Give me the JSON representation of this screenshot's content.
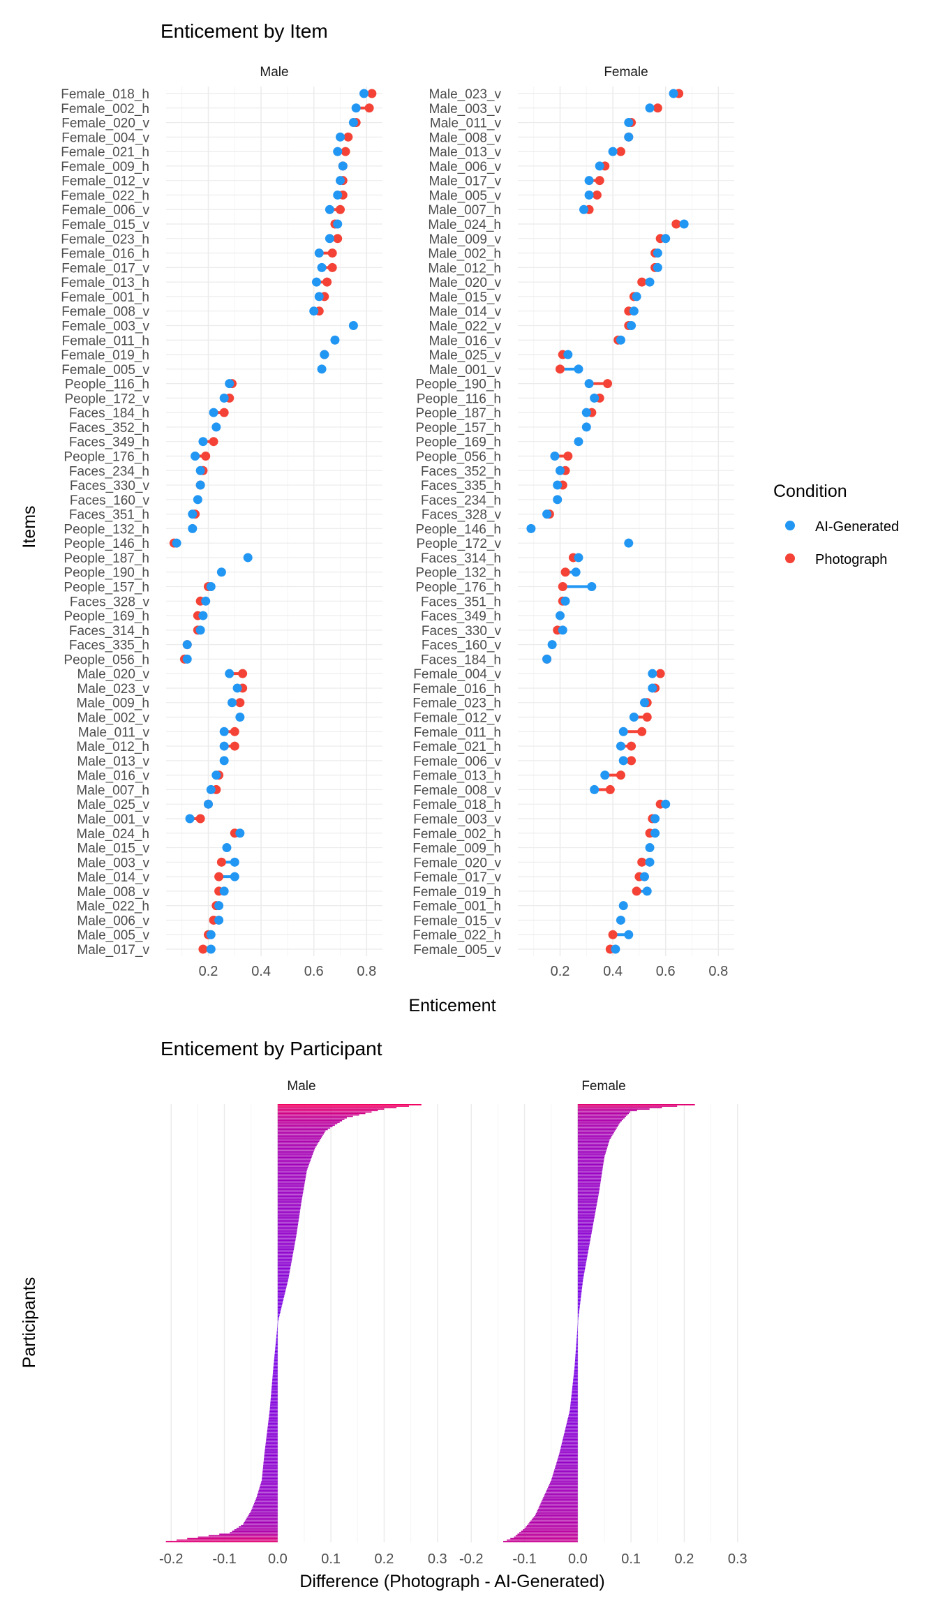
{
  "colors": {
    "ai": "#2196F3",
    "photo": "#F44336",
    "grid": "#EBEBEB",
    "text": "#4D4D4D",
    "bar_low": "#6A00F4",
    "bar_high": "#F20060"
  },
  "legend": {
    "title": "Condition",
    "items": [
      "AI-Generated",
      "Photograph"
    ]
  },
  "chart_data": [
    {
      "type": "dumbbell",
      "title": "Enticement by Item",
      "xlabel": "Enticement",
      "ylabel": "Items",
      "xlim": [
        0.04,
        0.86
      ],
      "xticks": [
        0.2,
        0.4,
        0.6,
        0.8
      ],
      "xtick_labels": [
        "0.2",
        "0.4",
        "0.6",
        "0.8"
      ],
      "grid": true,
      "legend_position": "right",
      "panels": [
        {
          "name": "Male",
          "items": [
            {
              "label": "Female_018_h",
              "ai": 0.79,
              "photo": 0.82
            },
            {
              "label": "Female_002_h",
              "ai": 0.76,
              "photo": 0.81
            },
            {
              "label": "Female_020_v",
              "ai": 0.75,
              "photo": 0.76
            },
            {
              "label": "Female_004_v",
              "ai": 0.7,
              "photo": 0.73
            },
            {
              "label": "Female_021_h",
              "ai": 0.69,
              "photo": 0.72
            },
            {
              "label": "Female_009_h",
              "ai": 0.71,
              "photo": 0.71
            },
            {
              "label": "Female_012_v",
              "ai": 0.7,
              "photo": 0.71
            },
            {
              "label": "Female_022_h",
              "ai": 0.69,
              "photo": 0.71
            },
            {
              "label": "Female_006_v",
              "ai": 0.66,
              "photo": 0.7
            },
            {
              "label": "Female_015_v",
              "ai": 0.69,
              "photo": 0.68
            },
            {
              "label": "Female_023_h",
              "ai": 0.66,
              "photo": 0.69
            },
            {
              "label": "Female_016_h",
              "ai": 0.62,
              "photo": 0.67
            },
            {
              "label": "Female_017_v",
              "ai": 0.63,
              "photo": 0.67
            },
            {
              "label": "Female_013_h",
              "ai": 0.61,
              "photo": 0.65
            },
            {
              "label": "Female_001_h",
              "ai": 0.62,
              "photo": 0.64
            },
            {
              "label": "Female_008_v",
              "ai": 0.6,
              "photo": 0.62
            },
            {
              "label": "Female_003_v",
              "ai": 0.75,
              "photo": null
            },
            {
              "label": "Female_011_h",
              "ai": 0.68,
              "photo": null
            },
            {
              "label": "Female_019_h",
              "ai": 0.64,
              "photo": 0.64
            },
            {
              "label": "Female_005_v",
              "ai": 0.63,
              "photo": null
            },
            {
              "label": "People_116_h",
              "ai": 0.28,
              "photo": 0.29
            },
            {
              "label": "People_172_v",
              "ai": 0.26,
              "photo": 0.28
            },
            {
              "label": "Faces_184_h",
              "ai": 0.22,
              "photo": 0.26
            },
            {
              "label": "Faces_352_h",
              "ai": 0.23,
              "photo": null
            },
            {
              "label": "Faces_349_h",
              "ai": 0.18,
              "photo": 0.22
            },
            {
              "label": "People_176_h",
              "ai": 0.15,
              "photo": 0.19
            },
            {
              "label": "Faces_234_h",
              "ai": 0.17,
              "photo": 0.18
            },
            {
              "label": "Faces_330_v",
              "ai": 0.17,
              "photo": 0.17
            },
            {
              "label": "Faces_160_v",
              "ai": 0.16,
              "photo": null
            },
            {
              "label": "Faces_351_h",
              "ai": 0.14,
              "photo": 0.15
            },
            {
              "label": "People_132_h",
              "ai": 0.14,
              "photo": null
            },
            {
              "label": "People_146_h",
              "ai": 0.08,
              "photo": 0.07
            },
            {
              "label": "People_187_h",
              "ai": 0.35,
              "photo": null
            },
            {
              "label": "People_190_h",
              "ai": 0.25,
              "photo": null
            },
            {
              "label": "People_157_h",
              "ai": 0.21,
              "photo": 0.2
            },
            {
              "label": "Faces_328_v",
              "ai": 0.19,
              "photo": 0.17
            },
            {
              "label": "People_169_h",
              "ai": 0.18,
              "photo": 0.16
            },
            {
              "label": "Faces_314_h",
              "ai": 0.17,
              "photo": 0.16
            },
            {
              "label": "Faces_335_h",
              "ai": 0.12,
              "photo": 0.12
            },
            {
              "label": "People_056_h",
              "ai": 0.12,
              "photo": 0.11
            },
            {
              "label": "Male_020_v",
              "ai": 0.28,
              "photo": 0.33
            },
            {
              "label": "Male_023_v",
              "ai": 0.31,
              "photo": 0.33
            },
            {
              "label": "Male_009_h",
              "ai": 0.29,
              "photo": 0.32
            },
            {
              "label": "Male_002_v",
              "ai": 0.32,
              "photo": null
            },
            {
              "label": "Male_011_v",
              "ai": 0.26,
              "photo": 0.3
            },
            {
              "label": "Male_012_h",
              "ai": 0.26,
              "photo": 0.3
            },
            {
              "label": "Male_013_v",
              "ai": 0.26,
              "photo": null
            },
            {
              "label": "Male_016_v",
              "ai": 0.23,
              "photo": 0.24
            },
            {
              "label": "Male_007_h",
              "ai": 0.21,
              "photo": 0.23
            },
            {
              "label": "Male_025_v",
              "ai": 0.2,
              "photo": 0.2
            },
            {
              "label": "Male_001_v",
              "ai": 0.13,
              "photo": 0.17
            },
            {
              "label": "Male_024_h",
              "ai": 0.32,
              "photo": 0.3
            },
            {
              "label": "Male_015_v",
              "ai": 0.27,
              "photo": null
            },
            {
              "label": "Male_003_v",
              "ai": 0.3,
              "photo": 0.25
            },
            {
              "label": "Male_014_v",
              "ai": 0.3,
              "photo": 0.24
            },
            {
              "label": "Male_008_v",
              "ai": 0.26,
              "photo": 0.24
            },
            {
              "label": "Male_022_h",
              "ai": 0.24,
              "photo": 0.23
            },
            {
              "label": "Male_006_v",
              "ai": 0.24,
              "photo": 0.22
            },
            {
              "label": "Male_005_v",
              "ai": 0.21,
              "photo": 0.2
            },
            {
              "label": "Male_017_v",
              "ai": 0.21,
              "photo": 0.18
            }
          ]
        },
        {
          "name": "Female",
          "items": [
            {
              "label": "Male_023_v",
              "ai": 0.63,
              "photo": 0.65
            },
            {
              "label": "Male_003_v",
              "ai": 0.54,
              "photo": 0.57
            },
            {
              "label": "Male_011_v",
              "ai": 0.46,
              "photo": 0.47
            },
            {
              "label": "Male_008_v",
              "ai": 0.46,
              "photo": 0.46
            },
            {
              "label": "Male_013_v",
              "ai": 0.4,
              "photo": 0.43
            },
            {
              "label": "Male_006_v",
              "ai": 0.35,
              "photo": 0.37
            },
            {
              "label": "Male_017_v",
              "ai": 0.31,
              "photo": 0.35
            },
            {
              "label": "Male_005_v",
              "ai": 0.31,
              "photo": 0.34
            },
            {
              "label": "Male_007_h",
              "ai": 0.29,
              "photo": 0.31
            },
            {
              "label": "Male_024_h",
              "ai": 0.67,
              "photo": 0.64
            },
            {
              "label": "Male_009_v",
              "ai": 0.6,
              "photo": 0.58
            },
            {
              "label": "Male_002_h",
              "ai": 0.57,
              "photo": 0.56
            },
            {
              "label": "Male_012_h",
              "ai": 0.57,
              "photo": 0.56
            },
            {
              "label": "Male_020_v",
              "ai": 0.54,
              "photo": 0.51
            },
            {
              "label": "Male_015_v",
              "ai": 0.49,
              "photo": 0.48
            },
            {
              "label": "Male_014_v",
              "ai": 0.48,
              "photo": 0.46
            },
            {
              "label": "Male_022_v",
              "ai": 0.47,
              "photo": 0.46
            },
            {
              "label": "Male_016_v",
              "ai": 0.43,
              "photo": 0.42
            },
            {
              "label": "Male_025_v",
              "ai": 0.23,
              "photo": 0.21
            },
            {
              "label": "Male_001_v",
              "ai": 0.27,
              "photo": 0.2
            },
            {
              "label": "People_190_h",
              "ai": 0.31,
              "photo": 0.38
            },
            {
              "label": "People_116_h",
              "ai": 0.33,
              "photo": 0.35
            },
            {
              "label": "People_187_h",
              "ai": 0.3,
              "photo": 0.32
            },
            {
              "label": "People_157_h",
              "ai": 0.3,
              "photo": null
            },
            {
              "label": "People_169_h",
              "ai": 0.27,
              "photo": null
            },
            {
              "label": "People_056_h",
              "ai": 0.18,
              "photo": 0.23
            },
            {
              "label": "Faces_352_h",
              "ai": 0.2,
              "photo": 0.22
            },
            {
              "label": "Faces_335_h",
              "ai": 0.19,
              "photo": 0.21
            },
            {
              "label": "Faces_234_h",
              "ai": 0.19,
              "photo": null
            },
            {
              "label": "Faces_328_v",
              "ai": 0.15,
              "photo": 0.16
            },
            {
              "label": "People_146_h",
              "ai": 0.09,
              "photo": null
            },
            {
              "label": "People_172_v",
              "ai": 0.46,
              "photo": null
            },
            {
              "label": "Faces_314_h",
              "ai": 0.27,
              "photo": 0.25
            },
            {
              "label": "People_132_h",
              "ai": 0.26,
              "photo": 0.22
            },
            {
              "label": "People_176_h",
              "ai": 0.32,
              "photo": 0.21
            },
            {
              "label": "Faces_351_h",
              "ai": 0.22,
              "photo": 0.21
            },
            {
              "label": "Faces_349_h",
              "ai": 0.2,
              "photo": null
            },
            {
              "label": "Faces_330_v",
              "ai": 0.21,
              "photo": 0.19
            },
            {
              "label": "Faces_160_v",
              "ai": 0.17,
              "photo": null
            },
            {
              "label": "Faces_184_h",
              "ai": 0.15,
              "photo": 0.15
            },
            {
              "label": "Female_004_v",
              "ai": 0.55,
              "photo": 0.58
            },
            {
              "label": "Female_016_h",
              "ai": 0.55,
              "photo": 0.56
            },
            {
              "label": "Female_023_h",
              "ai": 0.52,
              "photo": 0.53
            },
            {
              "label": "Female_012_v",
              "ai": 0.48,
              "photo": 0.53
            },
            {
              "label": "Female_011_h",
              "ai": 0.44,
              "photo": 0.51
            },
            {
              "label": "Female_021_h",
              "ai": 0.43,
              "photo": 0.47
            },
            {
              "label": "Female_006_v",
              "ai": 0.44,
              "photo": 0.47
            },
            {
              "label": "Female_013_h",
              "ai": 0.37,
              "photo": 0.43
            },
            {
              "label": "Female_008_v",
              "ai": 0.33,
              "photo": 0.39
            },
            {
              "label": "Female_018_h",
              "ai": 0.6,
              "photo": 0.58
            },
            {
              "label": "Female_003_v",
              "ai": 0.56,
              "photo": 0.55
            },
            {
              "label": "Female_002_h",
              "ai": 0.56,
              "photo": 0.54
            },
            {
              "label": "Female_009_h",
              "ai": 0.54,
              "photo": null
            },
            {
              "label": "Female_020_v",
              "ai": 0.54,
              "photo": 0.51
            },
            {
              "label": "Female_017_v",
              "ai": 0.52,
              "photo": 0.5
            },
            {
              "label": "Female_019_h",
              "ai": 0.53,
              "photo": 0.49
            },
            {
              "label": "Female_001_h",
              "ai": 0.44,
              "photo": null
            },
            {
              "label": "Female_015_v",
              "ai": 0.43,
              "photo": null
            },
            {
              "label": "Female_022_h",
              "ai": 0.46,
              "photo": 0.4
            },
            {
              "label": "Female_005_v",
              "ai": 0.41,
              "photo": 0.39
            }
          ]
        }
      ]
    },
    {
      "type": "bar",
      "orientation": "horizontal",
      "title": "Enticement by Participant",
      "xlabel": "Difference (Photograph - AI-Generated)",
      "ylabel": "Participants",
      "xlim": [
        -0.22,
        0.32
      ],
      "xticks": [
        -0.2,
        -0.1,
        0.0,
        0.1,
        0.2,
        0.3
      ],
      "xtick_labels": [
        "-0.2",
        "-0.1",
        "0.0",
        "0.1",
        "0.2",
        "0.3"
      ],
      "grid": true,
      "panels": [
        {
          "name": "Male",
          "n_participants": 300,
          "sorted_difference_profile": {
            "fraction": [
              0,
              0.01,
              0.03,
              0.06,
              0.1,
              0.15,
              0.22,
              0.3,
              0.4,
              0.5,
              0.6,
              0.7,
              0.8,
              0.86,
              0.9,
              0.93,
              0.96,
              0.98,
              0.99,
              1
            ],
            "difference": [
              0.27,
              0.2,
              0.13,
              0.09,
              0.07,
              0.055,
              0.045,
              0.035,
              0.02,
              0.0,
              -0.008,
              -0.015,
              -0.025,
              -0.03,
              -0.04,
              -0.05,
              -0.065,
              -0.09,
              -0.15,
              -0.21
            ]
          }
        },
        {
          "name": "Female",
          "n_participants": 300,
          "sorted_difference_profile": {
            "fraction": [
              0,
              0.005,
              0.015,
              0.04,
              0.08,
              0.12,
              0.2,
              0.3,
              0.4,
              0.5,
              0.6,
              0.7,
              0.75,
              0.8,
              0.86,
              0.9,
              0.94,
              0.97,
              0.99,
              1
            ],
            "difference": [
              0.22,
              0.17,
              0.1,
              0.08,
              0.06,
              0.05,
              0.04,
              0.025,
              0.01,
              0.0,
              -0.006,
              -0.015,
              -0.025,
              -0.035,
              -0.05,
              -0.065,
              -0.08,
              -0.1,
              -0.12,
              -0.14
            ]
          }
        }
      ]
    }
  ]
}
